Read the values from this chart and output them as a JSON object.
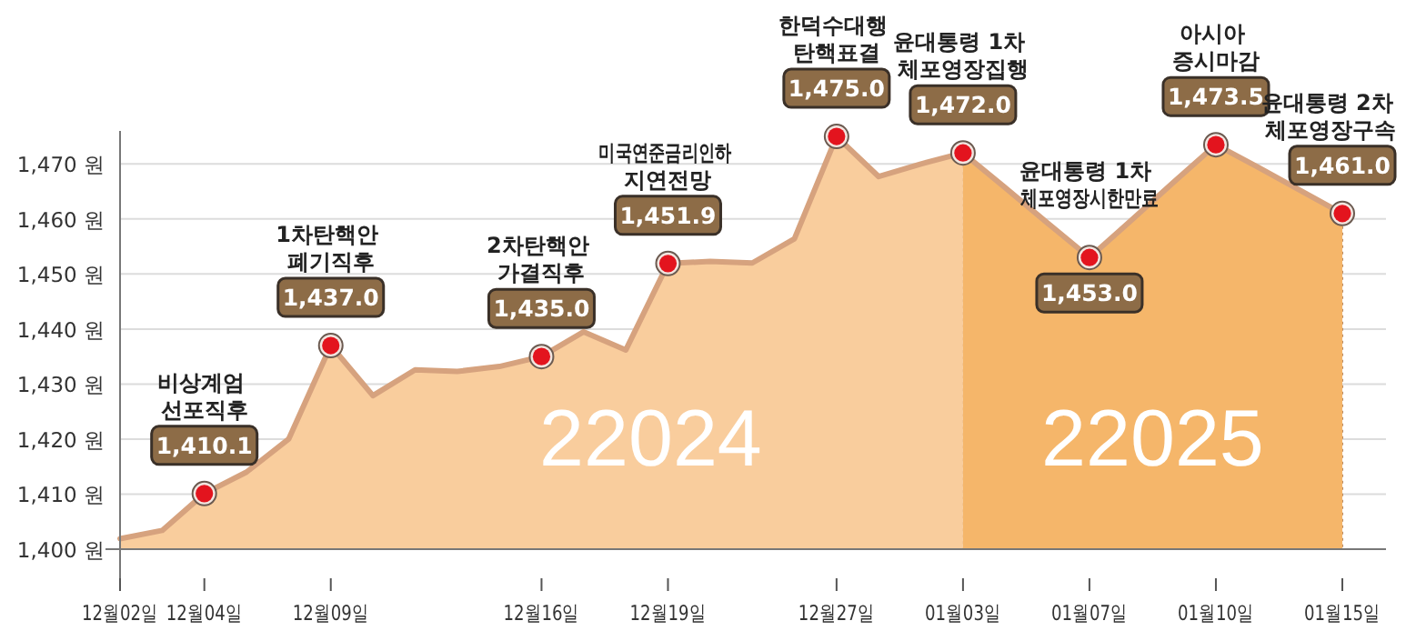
{
  "chart_data": {
    "type": "area",
    "categories": [
      "12월02일",
      null,
      "12월04일",
      null,
      null,
      "12월09일",
      null,
      null,
      null,
      null,
      "12월16일",
      null,
      null,
      "12월19일",
      null,
      null,
      null,
      "12월27일",
      null,
      null,
      "01월03일",
      null,
      null,
      "01월07일",
      null,
      null,
      "01월10일",
      null,
      null,
      "01월15일"
    ],
    "series": [
      {
        "color": "#f9cd9d",
        "values": [
          1401.9,
          1403.4,
          1410.1,
          1414,
          1420,
          1437.0,
          1427.9,
          1432.6,
          1432.3,
          1433.2,
          1435.0,
          1439.5,
          1436.2,
          1451.9,
          1452.3,
          1452.0,
          1456.4,
          1475.0,
          1467.7,
          1470.0,
          1472.0,
          null,
          null,
          null,
          null,
          null,
          null,
          null,
          null,
          null
        ],
        "value_labels": [
          null,
          null,
          "1,410.1",
          null,
          null,
          "1,437.0",
          null,
          null,
          null,
          null,
          "1,435.0",
          null,
          null,
          "1,451.9",
          null,
          null,
          null,
          "1,475.0",
          null,
          null,
          null,
          null,
          null,
          null,
          null,
          null,
          null,
          null,
          null,
          null
        ]
      },
      {
        "color": "#f5b66a",
        "values": [
          null,
          null,
          null,
          null,
          null,
          null,
          null,
          null,
          null,
          null,
          null,
          null,
          null,
          null,
          null,
          null,
          null,
          null,
          null,
          null,
          1472.0,
          1465.7,
          1459.3,
          1453.0,
          1459.8,
          1466.7,
          1473.5,
          1469.4,
          1465.2,
          1461.0
        ],
        "value_labels": [
          null,
          null,
          null,
          null,
          null,
          null,
          null,
          null,
          null,
          null,
          null,
          null,
          null,
          null,
          null,
          null,
          null,
          null,
          null,
          null,
          "1,472.0",
          null,
          null,
          "1,453.0",
          null,
          null,
          "1,473.5",
          null,
          null,
          "1,461.0"
        ]
      }
    ],
    "ylim": [
      1400,
      1476
    ],
    "yticks": [
      {
        "value": 1400,
        "label": "1,400 원"
      },
      {
        "value": 1410,
        "label": "1,410 원"
      },
      {
        "value": 1420,
        "label": "1,420 원"
      },
      {
        "value": 1430,
        "label": "1,430 원"
      },
      {
        "value": 1440,
        "label": "1,440 원"
      },
      {
        "value": 1450,
        "label": "1,450 원"
      },
      {
        "value": 1460,
        "label": "1,460 원"
      },
      {
        "value": 1470,
        "label": "1,470 원"
      }
    ],
    "grid": true,
    "annotations": [
      "비상계엄 선포직후",
      "1차탄핵안 폐기직후",
      "2차탄핵안 가결직후",
      "미국연준금리인하 지연전망",
      "한덕수대행 탄핵표결",
      "윤대통령 1차 체포영장집행",
      "윤대통령 1차 체포영장시한만료",
      "아시아 증시마감",
      "윤대통령 2차 체포영장구속",
      "22024",
      "22025"
    ]
  }
}
